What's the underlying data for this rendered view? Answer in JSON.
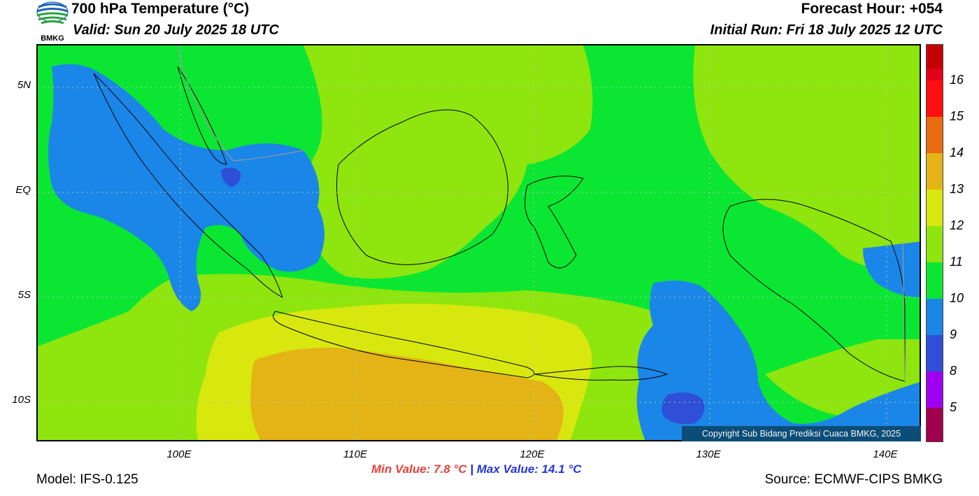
{
  "header": {
    "title": "700 hPa Temperature (°C)",
    "valid": "Valid: Sun 20 July 2025 18 UTC",
    "forecast_hour": "Forecast Hour: +054",
    "initial_run": "Initial Run: Fri 18 July 2025 12 UTC"
  },
  "logo": {
    "text": "BMKG",
    "icon": "bmkg-logo-icon"
  },
  "map": {
    "lat_labels": [
      "5N",
      "EQ",
      "5S",
      "10S"
    ],
    "lon_labels": [
      "100E",
      "110E",
      "120E",
      "130E",
      "140E"
    ],
    "copyright": "Copyright Sub Bidang Prediksi Cuaca BMKG, 2025",
    "colors": {
      "blue": "#1a86e8",
      "green": "#0be633",
      "lime": "#8fe50e",
      "yellow": "#d8e80f",
      "orange": "#e4b416",
      "deep_blue": "#2e4fd6"
    }
  },
  "footer": {
    "min_value": "Min Value: 7.8 °C",
    "separator": "|",
    "max_value": "Max Value: 14.1 °C",
    "model": "Model: IFS-0.125",
    "source": "Source: ECMWF-CIPS BMKG"
  },
  "colorbar": {
    "labels": [
      "16",
      "15",
      "14",
      "13",
      "12",
      "11",
      "10",
      "9",
      "8",
      "5"
    ],
    "colors_top_to_bottom": [
      "#c40000",
      "#e0001a",
      "#ff1010",
      "#e86b12",
      "#e4b416",
      "#d8e80f",
      "#8fe50e",
      "#0be633",
      "#1a86e8",
      "#2e4fd6",
      "#a000f0",
      "#a0004e"
    ]
  }
}
